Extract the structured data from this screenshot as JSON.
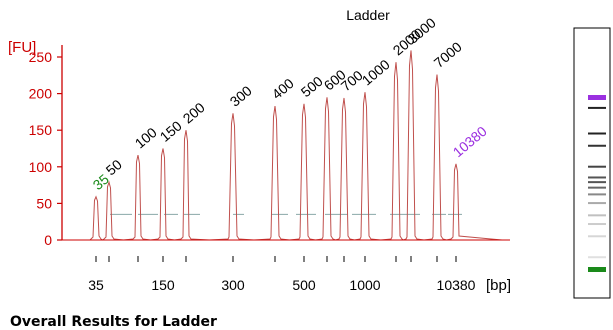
{
  "section_title": "Overall Results for Ladder",
  "chart_data": {
    "type": "line",
    "title": "Ladder",
    "ylabel": "[FU]",
    "xlabel": "[bp]",
    "ylim": [
      0,
      260
    ],
    "yticks": [
      0,
      50,
      100,
      150,
      200,
      250
    ],
    "x_tick_labels": [
      "35",
      "150",
      "300",
      "500",
      "1000",
      "10380"
    ],
    "x_tick_marks": [
      35,
      50,
      100,
      150,
      200,
      300,
      400,
      500,
      600,
      700,
      1000,
      2000,
      3000,
      7000,
      10380
    ],
    "peaks": [
      {
        "bp": 35,
        "label": "35",
        "height": 59,
        "marker": "lower"
      },
      {
        "bp": 50,
        "label": "50",
        "height": 79
      },
      {
        "bp": 100,
        "label": "100",
        "height": 116
      },
      {
        "bp": 150,
        "label": "150",
        "height": 125
      },
      {
        "bp": 200,
        "label": "200",
        "height": 150
      },
      {
        "bp": 300,
        "label": "300",
        "height": 173
      },
      {
        "bp": 400,
        "label": "400",
        "height": 183
      },
      {
        "bp": 500,
        "label": "500",
        "height": 186
      },
      {
        "bp": 600,
        "label": "600",
        "height": 195
      },
      {
        "bp": 700,
        "label": "700",
        "height": 194
      },
      {
        "bp": 1000,
        "label": "1000",
        "height": 202
      },
      {
        "bp": 2000,
        "label": "2000",
        "height": 243
      },
      {
        "bp": 3000,
        "label": "3000",
        "height": 259
      },
      {
        "bp": 7000,
        "label": "7000",
        "height": 226
      },
      {
        "bp": 10380,
        "label": "10380",
        "height": 104,
        "marker": "upper"
      }
    ],
    "colors": {
      "trace": "#c0504d",
      "axis": "#cc0000",
      "lower_marker": "#1a8a1a",
      "upper_marker": "#9b30e0",
      "label": "#000000",
      "baseline_segment": "#8aa8a8"
    },
    "gel_lane": {
      "bands": [
        {
          "bp": 10380,
          "color": "#9b30e0"
        },
        {
          "bp": 7000,
          "color": "#222222"
        },
        {
          "bp": 3000,
          "color": "#222222"
        },
        {
          "bp": 2000,
          "color": "#333333"
        },
        {
          "bp": 1000,
          "color": "#444444"
        },
        {
          "bp": 700,
          "color": "#555555"
        },
        {
          "bp": 600,
          "color": "#555555"
        },
        {
          "bp": 500,
          "color": "#666666"
        },
        {
          "bp": 400,
          "color": "#888888"
        },
        {
          "bp": 300,
          "color": "#aaaaaa"
        },
        {
          "bp": 200,
          "color": "#c0c0c0"
        },
        {
          "bp": 150,
          "color": "#cccccc"
        },
        {
          "bp": 100,
          "color": "#d6d6d6"
        },
        {
          "bp": 50,
          "color": "#e0e0e0"
        },
        {
          "bp": 35,
          "color": "#1a8a1a"
        }
      ]
    }
  }
}
